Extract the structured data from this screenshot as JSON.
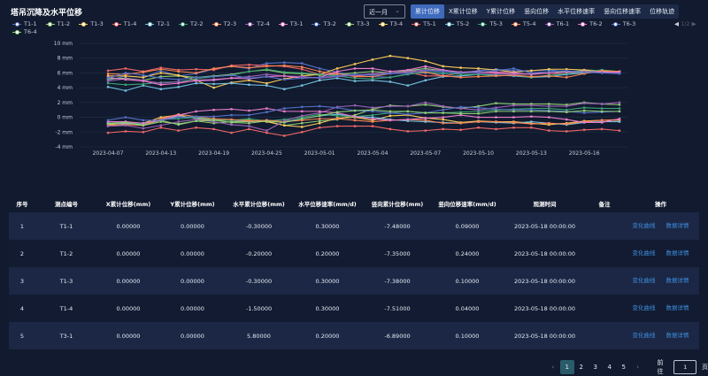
{
  "title": "塔吊沉降及水平位移",
  "range_select": {
    "value": "近一月"
  },
  "tabs": [
    "累计位移",
    "X累计位移",
    "Y累计位移",
    "竖向位移",
    "水平位移速率",
    "竖向位移速率",
    "位移轨迹"
  ],
  "active_tab": 0,
  "legend_page": "1/2",
  "chart_data": {
    "type": "line",
    "y_tick_labels": [
      "10 mm",
      "8 mm",
      "6 mm",
      "4 mm",
      "2 mm",
      "0 mm",
      "-2 mm",
      "-4 mm"
    ],
    "ylim": [
      -4,
      10
    ],
    "x": [
      "2023-04-07",
      "2023-04-09",
      "2023-04-11",
      "2023-04-13",
      "2023-04-15",
      "2023-04-17",
      "2023-04-19",
      "2023-04-21",
      "2023-04-23",
      "2023-04-25",
      "2023-04-27",
      "2023-04-29",
      "2023-05-01",
      "2023-05-02",
      "2023-05-03",
      "2023-05-04",
      "2023-05-05",
      "2023-05-06",
      "2023-05-07",
      "2023-05-08",
      "2023-05-09",
      "2023-05-10",
      "2023-05-11",
      "2023-05-12",
      "2023-05-13",
      "2023-05-14",
      "2023-05-15",
      "2023-05-16",
      "2023-05-17",
      "2023-05-18"
    ],
    "x_tick_labels": [
      "2023-04-07",
      "2023-04-13",
      "2023-04-19",
      "2023-04-25",
      "2023-05-01",
      "2023-05-04",
      "2023-05-07",
      "2023-05-10",
      "2023-05-13",
      "2023-05-16"
    ],
    "series": [
      {
        "name": "T1-1",
        "color": "#5470c6",
        "values": [
          5.0,
          5.6,
          5.4,
          6.3,
          5.6,
          5.9,
          6.5,
          6.9,
          6.6,
          7.3,
          7.4,
          7.3,
          6.6,
          6.1,
          5.6,
          5.5,
          5.4,
          5.9,
          6.0,
          5.9,
          6.0,
          6.3,
          6.5,
          6.3,
          6.3,
          6.4,
          6.2,
          6.2,
          6.2,
          6.0
        ]
      },
      {
        "name": "T1-2",
        "color": "#91cc75",
        "values": [
          5.2,
          5.3,
          5.0,
          5.5,
          5.6,
          5.4,
          5.6,
          5.8,
          6.2,
          6.4,
          6.0,
          5.9,
          5.7,
          5.8,
          6.0,
          6.2,
          6.0,
          6.3,
          6.6,
          6.3,
          6.0,
          6.2,
          6.0,
          5.8,
          5.9,
          6.0,
          6.2,
          6.3,
          6.2,
          6.1
        ]
      },
      {
        "name": "T1-3",
        "color": "#fac858",
        "values": [
          5.6,
          5.6,
          5.4,
          6.0,
          5.7,
          5.0,
          4.0,
          4.7,
          5.0,
          4.6,
          5.2,
          5.6,
          5.8,
          6.6,
          7.2,
          7.8,
          8.3,
          8.0,
          7.6,
          6.9,
          6.7,
          6.6,
          6.4,
          6.1,
          6.3,
          6.5,
          6.5,
          6.4,
          6.3,
          6.2
        ]
      },
      {
        "name": "T1-4",
        "color": "#ee6666",
        "values": [
          6.3,
          6.6,
          6.2,
          6.7,
          6.4,
          6.5,
          6.4,
          7.0,
          7.1,
          7.0,
          6.9,
          6.5,
          5.8,
          5.9,
          5.6,
          5.8,
          6.0,
          6.1,
          5.6,
          5.6,
          6.0,
          6.1,
          6.0,
          5.8,
          5.9,
          6.0,
          5.8,
          6.1,
          6.3,
          6.2
        ]
      },
      {
        "name": "T2-1",
        "color": "#73c0de",
        "values": [
          4.1,
          3.6,
          4.3,
          3.8,
          4.1,
          4.6,
          4.5,
          4.6,
          4.4,
          4.3,
          3.8,
          4.3,
          5.0,
          5.3,
          4.9,
          5.0,
          4.8,
          4.3,
          5.0,
          5.5,
          5.6,
          5.8,
          5.7,
          5.6,
          5.4,
          5.5,
          5.8,
          6.0,
          6.1,
          6.1
        ]
      },
      {
        "name": "T2-2",
        "color": "#3ba272",
        "values": [
          4.6,
          4.4,
          4.5,
          4.7,
          4.8,
          5.2,
          5.5,
          5.7,
          6.2,
          6.5,
          6.1,
          6.0,
          5.8,
          5.6,
          5.3,
          5.2,
          5.4,
          5.8,
          6.1,
          6.0,
          5.8,
          5.8,
          5.6,
          5.7,
          5.4,
          5.7,
          5.9,
          6.2,
          6.4,
          6.2
        ]
      },
      {
        "name": "T2-3",
        "color": "#fc8452",
        "values": [
          5.9,
          5.8,
          6.1,
          6.5,
          6.2,
          6.0,
          6.6,
          6.9,
          6.7,
          6.9,
          7.0,
          6.8,
          6.2,
          5.9,
          5.5,
          5.5,
          5.9,
          6.2,
          6.1,
          5.6,
          5.4,
          5.5,
          5.6,
          5.7,
          5.5,
          5.6,
          5.4,
          5.9,
          6.3,
          6.2
        ]
      },
      {
        "name": "T2-4",
        "color": "#9a60b4",
        "values": [
          4.9,
          5.2,
          5.0,
          4.6,
          4.8,
          4.9,
          5.0,
          5.3,
          5.5,
          5.8,
          5.6,
          5.5,
          5.3,
          5.5,
          5.7,
          5.9,
          6.0,
          6.2,
          6.4,
          6.3,
          6.1,
          6.0,
          5.9,
          5.8,
          5.9,
          6.0,
          6.1,
          6.2,
          6.1,
          6.0
        ]
      },
      {
        "name": "T3-1",
        "color": "#ea7ccc",
        "values": [
          5.4,
          5.1,
          4.9,
          4.4,
          4.6,
          5.0,
          5.1,
          5.3,
          5.2,
          5.5,
          5.6,
          5.3,
          5.4,
          6.2,
          6.6,
          6.6,
          6.2,
          6.4,
          6.9,
          6.4,
          6.1,
          6.2,
          6.1,
          6.0,
          5.8,
          6.0,
          6.1,
          6.2,
          6.1,
          6.1
        ]
      },
      {
        "name": "T3-2",
        "color": "#5470c6",
        "values": [
          5.3,
          6.0,
          5.7,
          5.3,
          5.1,
          5.4,
          5.5,
          5.7,
          5.3,
          5.5,
          5.1,
          5.3,
          5.4,
          5.6,
          5.8,
          5.7,
          5.9,
          6.0,
          6.3,
          6.2,
          6.0,
          6.1,
          6.3,
          6.6,
          6.0,
          6.2,
          6.3,
          6.1,
          6.0,
          5.9
        ]
      },
      {
        "name": "T3-3",
        "color": "#91cc75",
        "values": [
          -0.8,
          -0.7,
          -1.0,
          -0.4,
          -1.0,
          -0.5,
          -0.8,
          -0.6,
          -0.6,
          -0.5,
          -1.1,
          -0.8,
          -0.5,
          -0.3,
          0.3,
          1.1,
          1.6,
          1.5,
          1.7,
          1.4,
          1.2,
          1.5,
          1.9,
          1.8,
          1.8,
          1.8,
          1.7,
          2.0,
          1.8,
          1.7
        ]
      },
      {
        "name": "T3-4",
        "color": "#fac858",
        "values": [
          -1.0,
          -0.8,
          -0.8,
          0.0,
          0.3,
          -0.2,
          -0.4,
          -0.4,
          -0.4,
          -0.6,
          -1.1,
          -1.3,
          -0.8,
          -0.1,
          0.0,
          -0.4,
          0.2,
          0.3,
          -0.1,
          -0.3,
          -0.7,
          -0.5,
          -0.6,
          -0.6,
          -0.8,
          -1.0,
          -0.8,
          -0.5,
          -0.4,
          -0.4
        ]
      },
      {
        "name": "T5-1",
        "color": "#ee6666",
        "values": [
          -2.1,
          -1.9,
          -2.0,
          -1.4,
          -1.8,
          -1.4,
          -1.6,
          -2.1,
          -1.6,
          -2.1,
          -2.5,
          -2.0,
          -1.4,
          -1.2,
          -1.2,
          -1.2,
          -1.6,
          -1.9,
          -1.8,
          -1.6,
          -1.7,
          -1.4,
          -1.6,
          -1.4,
          -1.4,
          -1.8,
          -1.9,
          -1.7,
          -1.6,
          -1.8
        ]
      },
      {
        "name": "T5-2",
        "color": "#73c0de",
        "values": [
          -0.8,
          -0.9,
          -0.9,
          -0.3,
          0.1,
          -0.1,
          -0.3,
          -0.4,
          -0.5,
          -0.4,
          -0.6,
          -0.2,
          0.2,
          0.4,
          0.1,
          0.0,
          -0.3,
          -0.5,
          -0.6,
          -0.7,
          -0.8,
          -0.6,
          -0.7,
          -0.8,
          -0.6,
          -0.8,
          -1.0,
          -0.7,
          -0.6,
          -0.6
        ]
      },
      {
        "name": "T5-3",
        "color": "#3ba272",
        "values": [
          -0.6,
          -0.6,
          -0.9,
          -0.3,
          -0.2,
          0.0,
          -0.3,
          -0.4,
          -0.2,
          -0.5,
          -0.3,
          0.0,
          0.4,
          0.2,
          0.1,
          0.3,
          0.6,
          0.8,
          0.6,
          0.6,
          0.7,
          0.8,
          1.0,
          1.1,
          1.2,
          1.2,
          1.0,
          1.3,
          1.2,
          1.2
        ]
      },
      {
        "name": "T5-4",
        "color": "#fc8452",
        "values": [
          -1.1,
          -1.0,
          -1.1,
          -0.2,
          0.4,
          0.1,
          -0.2,
          -0.3,
          -0.5,
          -0.4,
          -0.6,
          -0.4,
          -0.2,
          -0.2,
          -0.4,
          -0.6,
          -0.4,
          -0.3,
          -0.4,
          -0.8,
          -0.8,
          -0.6,
          -0.6,
          -0.7,
          -0.9,
          -0.8,
          -0.9,
          -0.6,
          -0.4,
          -0.3
        ]
      },
      {
        "name": "T6-1",
        "color": "#9a60b4",
        "values": [
          -1.2,
          -1.1,
          -1.5,
          -1.1,
          -0.6,
          -0.3,
          -0.6,
          -1.0,
          -1.2,
          -1.8,
          -0.5,
          0.2,
          0.6,
          1.4,
          1.6,
          1.3,
          1.5,
          1.5,
          2.0,
          1.5,
          1.2,
          1.0,
          1.3,
          1.6,
          1.6,
          1.5,
          1.5,
          1.9,
          1.8,
          2.0
        ]
      },
      {
        "name": "T6-2",
        "color": "#ea7ccc",
        "values": [
          -0.6,
          -0.6,
          -0.8,
          -0.4,
          0.3,
          0.8,
          1.0,
          1.1,
          0.9,
          1.2,
          0.8,
          0.8,
          0.8,
          0.6,
          0.1,
          -0.2,
          -0.4,
          -0.3,
          -0.1,
          0.0,
          0.3,
          0.0,
          0.0,
          0.0,
          0.1,
          0.0,
          -0.3,
          -0.7,
          -0.7,
          -0.2
        ]
      },
      {
        "name": "T6-3",
        "color": "#5470c6",
        "values": [
          -0.4,
          0.0,
          -0.4,
          -0.4,
          0.0,
          0.1,
          0.1,
          0.3,
          0.3,
          0.7,
          1.2,
          1.4,
          1.5,
          1.3,
          0.9,
          0.8,
          0.6,
          0.4,
          0.6,
          1.0,
          1.4,
          1.3,
          1.1,
          1.0,
          1.0,
          0.9,
          0.8,
          0.6,
          0.7,
          0.8
        ]
      },
      {
        "name": "T6-4",
        "color": "#91cc75",
        "values": [
          -0.9,
          -0.7,
          -1.1,
          -0.6,
          -0.9,
          -0.5,
          -0.4,
          -0.7,
          -0.8,
          -0.5,
          -0.7,
          -0.2,
          0.2,
          0.7,
          0.9,
          1.0,
          0.8,
          0.8,
          0.6,
          0.6,
          0.5,
          0.5,
          0.8,
          0.8,
          0.8,
          0.8,
          0.7,
          0.9,
          0.8,
          0.8
        ]
      }
    ]
  },
  "table": {
    "headers": [
      "序号",
      "测点编号",
      "X累计位移(mm)",
      "Y累计位移(mm)",
      "水平累计位移(mm)",
      "水平位移速率(mm/d)",
      "竖向累计位移(mm)",
      "竖向位移速率(mm/d)",
      "观测时间",
      "备注",
      "操作"
    ],
    "rows": [
      [
        "1",
        "T1-1",
        "0.00000",
        "0.00000",
        "-0.30000",
        "0.30000",
        "-7.48000",
        "0.09000",
        "2023-05-18 00:00:00",
        ""
      ],
      [
        "2",
        "T1-2",
        "0.00000",
        "0.00000",
        "-0.20000",
        "0.20000",
        "-7.35000",
        "0.24000",
        "2023-05-18 00:00:00",
        ""
      ],
      [
        "3",
        "T1-3",
        "0.00000",
        "0.00000",
        "-0.30000",
        "0.30000",
        "-7.38000",
        "0.10000",
        "2023-05-18 00:00:00",
        ""
      ],
      [
        "4",
        "T1-4",
        "0.00000",
        "0.00000",
        "-1.50000",
        "0.30000",
        "-7.51000",
        "0.04000",
        "2023-05-18 00:00:00",
        ""
      ],
      [
        "5",
        "T3-1",
        "0.00000",
        "0.00000",
        "5.80000",
        "0.20000",
        "-6.89000",
        "0.10000",
        "2023-05-18 00:00:00",
        ""
      ]
    ],
    "actions": {
      "curve": "变化曲线",
      "detail": "数据详情"
    }
  },
  "pagination": {
    "pages": [
      "1",
      "2",
      "3",
      "4",
      "5"
    ],
    "current": "1",
    "goto_label": "前往",
    "goto_value": "1",
    "page_unit": "页",
    "prev": "‹",
    "next": "›"
  }
}
